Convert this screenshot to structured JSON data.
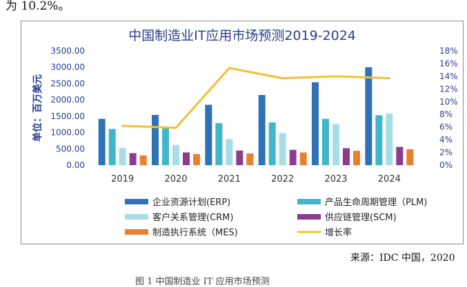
{
  "page": {
    "top_text": "为 10.2%。",
    "source": "来源：IDC 中国，2020",
    "caption": "图 1  中国制造业 IT 应用市场预测"
  },
  "colors": {
    "erp": "#2e72b8",
    "plm": "#3fb6c9",
    "crm": "#a6dde6",
    "scm": "#8b3c8c",
    "mes": "#e9802d",
    "growth": "#f2c12e",
    "title": "#2a3d8f",
    "axis_text": "#2a3d8f"
  },
  "chart_data": {
    "type": "bar",
    "title": "中国制造业IT应用市场预测2019-2024",
    "ylabel": "单位：百万美元",
    "xlabel": "",
    "categories": [
      "2019",
      "2020",
      "2021",
      "2022",
      "2023",
      "2024"
    ],
    "ylim": [
      0,
      3500
    ],
    "y_ticks": [
      "0.00",
      "500.00",
      "1000.00",
      "1500.00",
      "2000.00",
      "2500.00",
      "3000.00",
      "3500.00"
    ],
    "y2lim": [
      0,
      18
    ],
    "y2_ticks": [
      "0%",
      "2%",
      "4%",
      "6%",
      "8%",
      "10%",
      "12%",
      "14%",
      "16%",
      "18%"
    ],
    "series": [
      {
        "key": "erp",
        "name": "企业资源计划(ERP)",
        "values": [
          1420,
          1540,
          1850,
          2150,
          2540,
          3000
        ]
      },
      {
        "key": "plm",
        "name": "产品生命周期管理（PLM)",
        "values": [
          1110,
          1130,
          1290,
          1310,
          1420,
          1530
        ]
      },
      {
        "key": "crm",
        "name": "客户关系管理(CRM)",
        "values": [
          530,
          620,
          800,
          980,
          1260,
          1580
        ]
      },
      {
        "key": "scm",
        "name": "供应链管理(SCM)",
        "values": [
          370,
          390,
          450,
          470,
          520,
          560
        ]
      },
      {
        "key": "mes",
        "name": "制造执行系统（MES)",
        "values": [
          300,
          340,
          360,
          390,
          440,
          490
        ]
      }
    ],
    "line_series": {
      "key": "growth",
      "name": "增长率",
      "axis": "right",
      "values": [
        6.2,
        5.9,
        15.3,
        13.7,
        14.0,
        13.7
      ]
    },
    "legend_position": "bottom"
  }
}
